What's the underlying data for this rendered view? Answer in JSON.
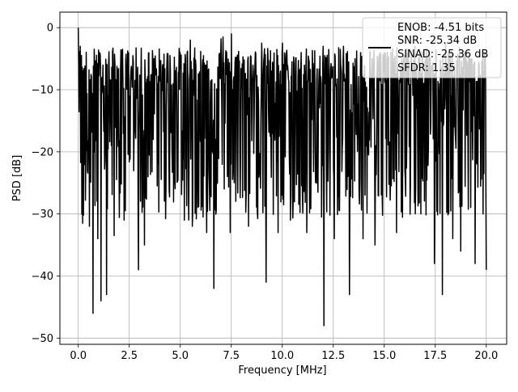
{
  "chart_data": {
    "type": "line",
    "title": "",
    "xlabel": "Frequency [MHz]",
    "ylabel": "PSD [dB]",
    "xlim": [
      -0.9,
      21.0
    ],
    "ylim": [
      -51.0,
      2.5
    ],
    "xticks": [
      0.0,
      2.5,
      5.0,
      7.5,
      10.0,
      12.5,
      15.0,
      17.5,
      20.0
    ],
    "xtick_labels": [
      "0.0",
      "2.5",
      "5.0",
      "7.5",
      "10.0",
      "12.5",
      "15.0",
      "17.5",
      "20.0"
    ],
    "yticks": [
      0,
      -10,
      -20,
      -30,
      -40,
      -50
    ],
    "ytick_labels": [
      "0",
      "−10",
      "−20",
      "−30",
      "−40",
      "−50"
    ],
    "grid": true,
    "legend_position": "top-right",
    "legend_lines": [
      "ENOB: -4.51 bits",
      "SNR: -25.34 dB",
      "SINAD: -25.36 dB",
      "SFDR: 1.35"
    ],
    "series_color": "#000000",
    "series": [
      {
        "x_start": 0.0,
        "x_end": 20.0,
        "n_points": 1024,
        "noise_floor_band": [
          -25,
          -8
        ],
        "peak": {
          "x": 0.0,
          "y": 0.0
        },
        "dips": [
          {
            "x": 0.22,
            "y": -31.5
          },
          {
            "x": 0.55,
            "y": -32.0
          },
          {
            "x": 0.72,
            "y": -46.0
          },
          {
            "x": 0.95,
            "y": -34.0
          },
          {
            "x": 1.12,
            "y": -44.0
          },
          {
            "x": 1.38,
            "y": -43.0
          },
          {
            "x": 1.75,
            "y": -33.5
          },
          {
            "x": 2.25,
            "y": -31.0
          },
          {
            "x": 2.95,
            "y": -39.0
          },
          {
            "x": 3.25,
            "y": -35.0
          },
          {
            "x": 4.5,
            "y": -33.0
          },
          {
            "x": 5.2,
            "y": -31.0
          },
          {
            "x": 5.6,
            "y": -32.0
          },
          {
            "x": 6.3,
            "y": -33.0
          },
          {
            "x": 6.65,
            "y": -42.0
          },
          {
            "x": 7.1,
            "y": -36.0
          },
          {
            "x": 7.45,
            "y": -33.0
          },
          {
            "x": 8.35,
            "y": -32.0
          },
          {
            "x": 9.2,
            "y": -41.0
          },
          {
            "x": 9.8,
            "y": -33.0
          },
          {
            "x": 10.4,
            "y": -31.0
          },
          {
            "x": 11.2,
            "y": -33.0
          },
          {
            "x": 12.05,
            "y": -48.0
          },
          {
            "x": 12.55,
            "y": -34.0
          },
          {
            "x": 13.3,
            "y": -43.0
          },
          {
            "x": 13.95,
            "y": -34.0
          },
          {
            "x": 14.55,
            "y": -35.0
          },
          {
            "x": 15.6,
            "y": -33.0
          },
          {
            "x": 16.5,
            "y": -31.0
          },
          {
            "x": 16.8,
            "y": -30.0
          },
          {
            "x": 17.45,
            "y": -38.0
          },
          {
            "x": 17.85,
            "y": -43.0
          },
          {
            "x": 18.35,
            "y": -34.0
          },
          {
            "x": 18.75,
            "y": -36.0
          },
          {
            "x": 19.45,
            "y": -38.0
          },
          {
            "x": 20.0,
            "y": -39.0
          }
        ],
        "spikes": [
          {
            "x": 0.02,
            "y": -5.5
          },
          {
            "x": 0.1,
            "y": -3.0
          },
          {
            "x": 4.5,
            "y": -4.5
          },
          {
            "x": 5.5,
            "y": -2.0
          },
          {
            "x": 7.0,
            "y": -1.8
          },
          {
            "x": 7.1,
            "y": -1.5
          },
          {
            "x": 7.5,
            "y": -1.0
          },
          {
            "x": 9.0,
            "y": -2.5
          },
          {
            "x": 10.0,
            "y": -2.5
          },
          {
            "x": 12.0,
            "y": -3.0
          },
          {
            "x": 13.0,
            "y": -3.0
          },
          {
            "x": 15.0,
            "y": -4.0
          },
          {
            "x": 16.5,
            "y": -3.0
          },
          {
            "x": 18.0,
            "y": -2.5
          },
          {
            "x": 19.3,
            "y": -5.0
          }
        ]
      }
    ]
  }
}
